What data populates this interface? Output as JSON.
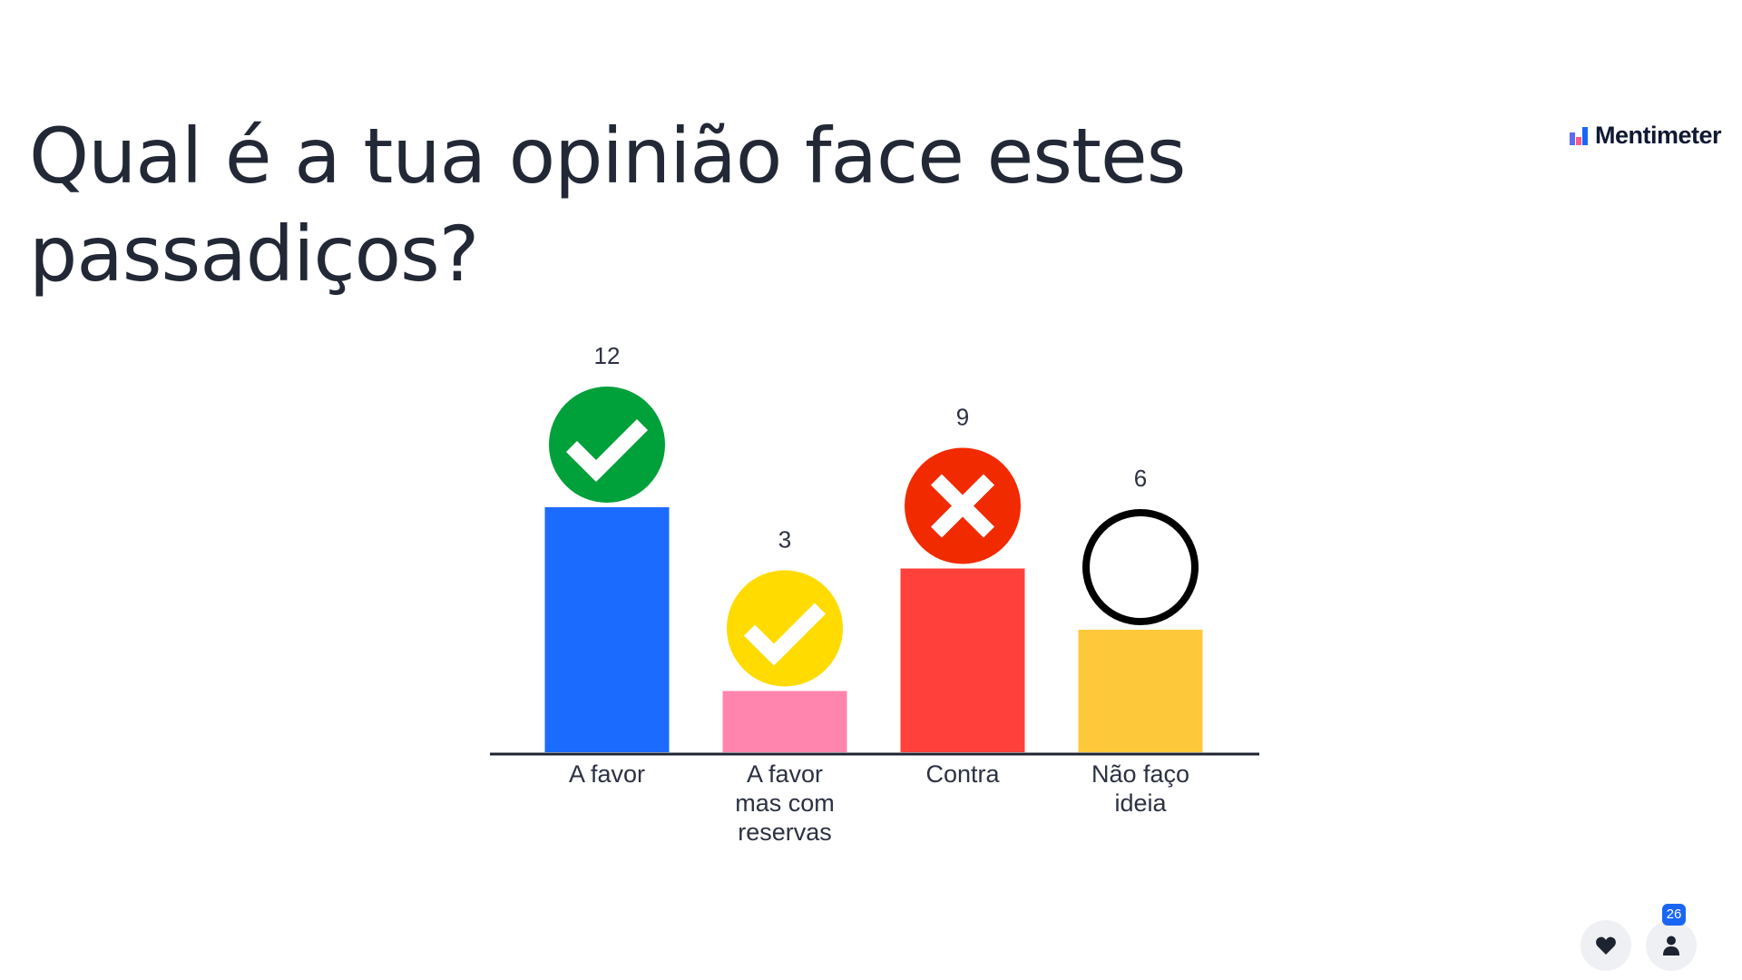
{
  "slide": {
    "title": "Qual é a tua opinião face estes passadiços?"
  },
  "brand": {
    "name": "Mentimeter",
    "logo_colors": [
      "#5b6cf0",
      "#ff5a8a",
      "#1966f5"
    ]
  },
  "chart_data": {
    "type": "bar",
    "categories": [
      "A favor",
      "A favor mas com reservas",
      "Contra",
      "Não faço ideia"
    ],
    "category_lines": [
      [
        "A favor"
      ],
      [
        "A favor",
        "mas com",
        "reservas"
      ],
      [
        "Contra"
      ],
      [
        "Não faço",
        "ideia"
      ]
    ],
    "values": [
      12,
      3,
      9,
      6
    ],
    "colors": [
      "#1c6bff",
      "#ff85af",
      "#ff403b",
      "#fec83b"
    ],
    "icons": [
      {
        "name": "green-check-icon",
        "kind": "check",
        "color": "#00a03a"
      },
      {
        "name": "yellow-check-icon",
        "kind": "check",
        "color": "#ffdb00"
      },
      {
        "name": "red-cross-icon",
        "kind": "cross",
        "color": "#f22a00"
      },
      {
        "name": "empty-circle-icon",
        "kind": "ring",
        "color": "#000000"
      }
    ],
    "ylim": [
      0,
      12
    ],
    "grid": false,
    "legend": "none"
  },
  "footer": {
    "participant_count": "26"
  },
  "icons": {
    "reactions": "heart-icon",
    "participants": "person-icon"
  }
}
